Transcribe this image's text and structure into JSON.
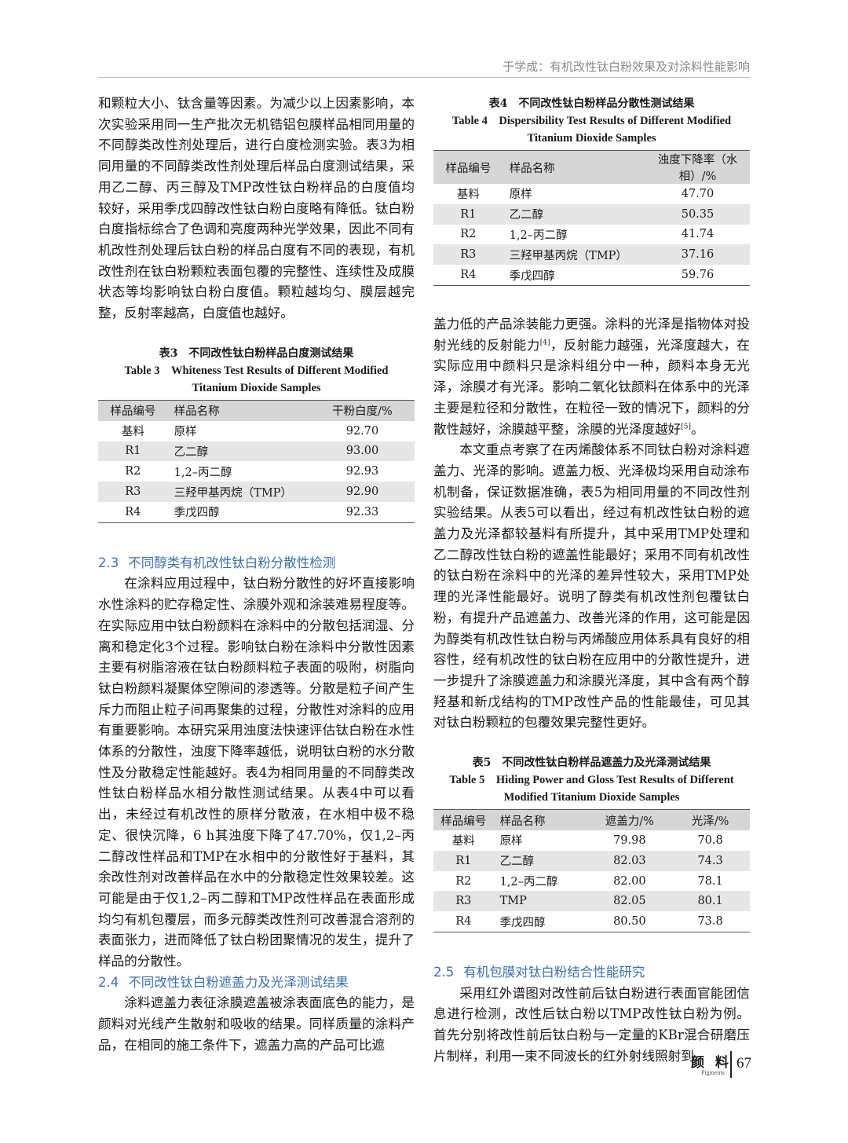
{
  "header": {
    "running_title": "于学成：有机改性钛白粉效果及对涂料性能影响"
  },
  "left_column": [
    {
      "paragraph": [
        "和颗粒大小、钛含量等因素。为减少以上因素影响，本次实验采用同一生产批次无机锆铝包膜样品相同用量的不同醇类改性剂处理后，进行白度检测实验。表3为相同用量的不同醇类改性剂处理后样品白度测试结果，采用乙二醇、丙三醇及TMP改性钛白粉样品的白度值均较好，采用季戊四醇改性钛白粉白度略有降低。钛白粉白度指标综合了色调和亮度两种光学效果，因此不同有机改性剂处理后钛白粉的样品白度有不同的表现，有机改性剂在钛白粉颗粒表面包覆的完整性、连续性及成膜状态等均影响钛白粉白度值。颗粒越均匀、膜层越完整，反射率越高，白度值也越好。"
      ]
    },
    {
      "caption_cn": "表3　不同改性钛白粉样品白度测试结果",
      "caption_en": "Table 3　Whiteness Test Results of Different Modified Titanium Dioxide Samples",
      "columns": [
        "样品编号",
        "样品名称",
        "干粉白度/%"
      ],
      "rows": [
        [
          "基料",
          "原样",
          "92.70"
        ],
        [
          "R1",
          "乙二醇",
          "93.00"
        ],
        [
          "R2",
          "1,2–丙二醇",
          "92.93"
        ],
        [
          "R3",
          "三羟甲基丙烷（TMP）",
          "92.90"
        ],
        [
          "R4",
          "季戊四醇",
          "92.33"
        ]
      ]
    },
    {
      "number": "2.3",
      "heading": "不同醇类有机改性钛白粉分散性检测"
    },
    {
      "paragraph": [
        "在涂料应用过程中，钛白粉分散性的好坏直接影响水性涂料的贮存稳定性、涂膜外观和涂装难易程度等。在实际应用中钛白粉颜料在涂料中的分散包括润湿、分离和稳定化3个过程。影响钛白粉在涂料中分散性因素主要有树脂溶液在钛白粉颜料粒子表面的吸附，树脂向钛白粉颜料凝聚体空隙间的渗透等。分散是粒子间产生斥力而阻止粒子间再聚集的过程，分散性对涂料的应用有重要影响。本研究采用浊度法快速评估钛白粉在水性体系的分散性，浊度下降率越低，说明钛白粉的水分散性及分散稳定性能越好。表4为相同用量的不同醇类改性钛白粉样品水相分散性测试结果。从表4中可以看出，未经过有机改性的原样分散液，在水相中极不稳定、很快沉降，6 h其浊度下降了47.70%，仅1,2–丙二醇改性样品和TMP在水相中的分散性好于基料，其余改性剂对改善样品在水中的分散稳定性效果较差。这可能是由于仅1,2–丙二醇和TMP改性样品在表面形成均匀有机包覆层，而多元醇类改性剂可改善混合溶剂的表面张力，进而降低了钛白粉团聚情况的发生，提升了样品的分散性。"
      ]
    },
    {
      "number": "2.4",
      "heading": "不同改性钛白粉遮盖力及光泽测试结果"
    },
    {
      "paragraph": [
        "涂料遮盖力表征涂膜遮盖被涂表面底色的能力，是颜料对光线产生散射和吸收的结果。同样质量的涂料产品，在相同的施工条件下，遮盖力高的产品可比遮"
      ]
    }
  ],
  "right_column": [
    {
      "caption_cn": "表4　不同改性钛白粉样品分散性测试结果",
      "caption_en": "Table 4　Dispersibility Test Results of Different Modified Titanium Dioxide Samples",
      "columns": [
        "样品编号",
        "样品名称",
        "浊度下降率（水相）/%"
      ],
      "rows": [
        [
          "基料",
          "原样",
          "47.70"
        ],
        [
          "R1",
          "乙二醇",
          "50.35"
        ],
        [
          "R2",
          "1,2–丙二醇",
          "41.74"
        ],
        [
          "R3",
          "三羟甲基丙烷（TMP）",
          "37.16"
        ],
        [
          "R4",
          "季戊四醇",
          "59.76"
        ]
      ]
    },
    {
      "paragraph": [
        "盖力低的产品涂装能力更强。涂料的光泽是指物体对投射光线的反射能力",
        "[4]",
        "，反射能力越强，光泽度越大，在实际应用中颜料只是涂料组分中一种，颜料本身无光泽，涂膜才有光泽。影响二氧化钛颜料在体系中的光泽主要是粒径和分散性，在粒径一致的情况下，颜料的分散性越好，涂膜越平整，涂膜的光泽度越好",
        "[5]",
        "。"
      ]
    },
    {
      "paragraph": [
        "本文重点考察了在丙烯酸体系不同钛白粉对涂料遮盖力、光泽的影响。遮盖力板、光泽极均采用自动涂布机制备，保证数据准确，表5为相同用量的不同改性剂实验结果。从表5可以看出，经过有机改性钛白粉的遮盖力及光泽都较基料有所提升，其中采用TMP处理和乙二醇改性钛白粉的遮盖性能最好；采用不同有机改性的钛白粉在涂料中的光泽的差异性较大，采用TMP处理的光泽性能最好。说明了醇类有机改性剂包覆钛白粉，有提升产品遮盖力、改善光泽的作用，这可能是因为醇类有机改性钛白粉与丙烯酸应用体系具有良好的相容性，经有机改性的钛白粉在应用中的分散性提升，进一步提升了涂膜遮盖力和涂膜光泽度，其中含有两个醇羟基和新戊结构的TMP改性产品的性能最佳，可见其对钛白粉颗粒的包覆效果完整性更好。"
      ]
    },
    {
      "caption_cn": "表5　不同改性钛白粉样品遮盖力及光泽测试结果",
      "caption_en": "Table 5　Hiding Power and Gloss Test Results of Different Modified Titanium Dioxide Samples",
      "columns": [
        "样品编号",
        "样品名称",
        "遮盖力/%",
        "光泽/%"
      ],
      "rows": [
        [
          "基料",
          "原样",
          "79.98",
          "70.8"
        ],
        [
          "R1",
          "乙二醇",
          "82.03",
          "74.3"
        ],
        [
          "R2",
          "1,2–丙二醇",
          "82.00",
          "78.1"
        ],
        [
          "R3",
          "TMP",
          "82.05",
          "80.1"
        ],
        [
          "R4",
          "季戊四醇",
          "80.50",
          "73.8"
        ]
      ]
    },
    {
      "number": "2.5",
      "heading": "有机包膜对钛白粉结合性能研究"
    },
    {
      "paragraph": [
        "采用红外谱图对改性前后钛白粉进行表面官能团信息进行检测，改性后钛白粉以TMP改性钛白粉为例。首先分别将改性前后钛白粉与一定量的KBr混合研磨压片制样，利用一束不同波长的红外射线照射到"
      ]
    }
  ],
  "footer": {
    "journal_cn": "颜 料",
    "journal_en": "Pigments",
    "page": "67"
  }
}
